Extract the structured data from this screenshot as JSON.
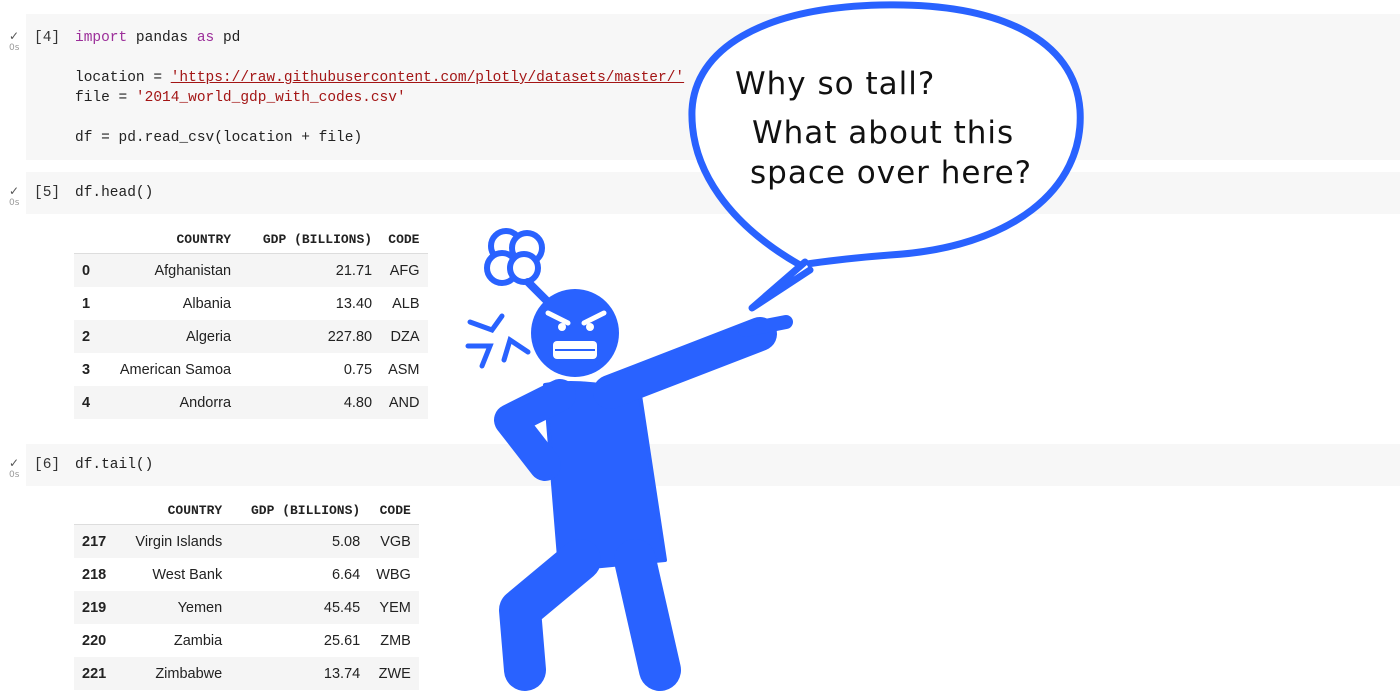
{
  "cells": [
    {
      "prompt": "[4]",
      "run_time": "0s",
      "code": {
        "line1_kw1": "import",
        "line1_mid": " pandas ",
        "line1_kw2": "as",
        "line1_end": " pd",
        "line2_pre": "location = ",
        "line2_str": "'https://raw.githubusercontent.com/plotly/datasets/master/'",
        "line3_pre": "file = ",
        "line3_str": "'2014_world_gdp_with_codes.csv'",
        "line4": "df = pd.read_csv(location + file)"
      }
    },
    {
      "prompt": "[5]",
      "run_time": "0s",
      "code": "df.head()",
      "output": {
        "columns": [
          "",
          "COUNTRY",
          "GDP (BILLIONS)",
          "CODE"
        ],
        "rows": [
          [
            "0",
            "Afghanistan",
            "21.71",
            "AFG"
          ],
          [
            "1",
            "Albania",
            "13.40",
            "ALB"
          ],
          [
            "2",
            "Algeria",
            "227.80",
            "DZA"
          ],
          [
            "3",
            "American Samoa",
            "0.75",
            "ASM"
          ],
          [
            "4",
            "Andorra",
            "4.80",
            "AND"
          ]
        ]
      }
    },
    {
      "prompt": "[6]",
      "run_time": "0s",
      "code": "df.tail()",
      "output": {
        "columns": [
          "",
          "COUNTRY",
          "GDP (BILLIONS)",
          "CODE"
        ],
        "rows": [
          [
            "217",
            "Virgin Islands",
            "5.08",
            "VGB"
          ],
          [
            "218",
            "West Bank",
            "6.64",
            "WBG"
          ],
          [
            "219",
            "Yemen",
            "45.45",
            "YEM"
          ],
          [
            "220",
            "Zambia",
            "25.61",
            "ZMB"
          ],
          [
            "221",
            "Zimbabwe",
            "13.74",
            "ZWE"
          ]
        ]
      }
    }
  ],
  "speech_bubble": {
    "line1": "Why so tall?",
    "line2": "What about this",
    "line3": "space over here?"
  },
  "colors": {
    "figure_blue": "#2962ff",
    "cell_background": "#f7f7f7",
    "keyword": "#9c2f9a",
    "string": "#a31515"
  }
}
